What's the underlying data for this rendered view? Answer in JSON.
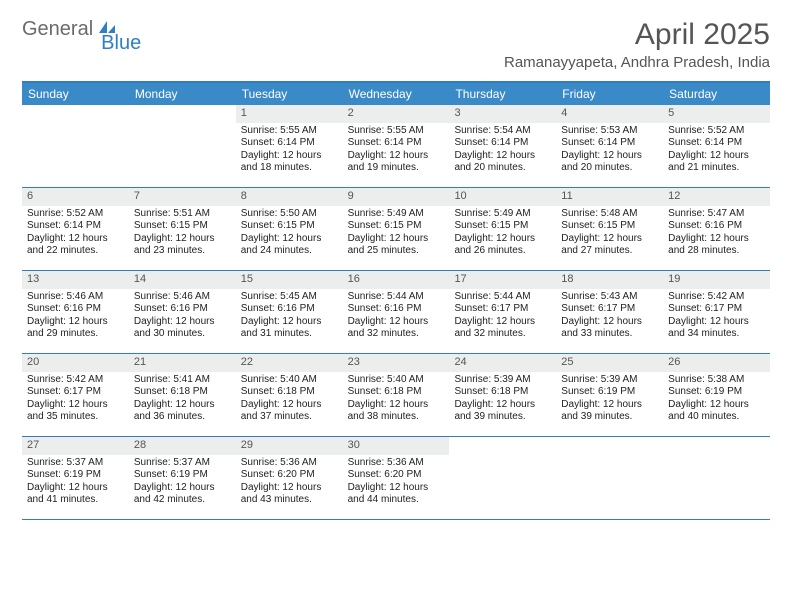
{
  "logo": {
    "part1": "General",
    "part2": "Blue"
  },
  "title": "April 2025",
  "location": "Ramanayyapeta, Andhra Pradesh, India",
  "colors": {
    "header_bg": "#3a8ac8",
    "border": "#2f7fc2",
    "daynum_bg": "#eceded",
    "text": "#333333",
    "title_text": "#555555"
  },
  "day_headers": [
    "Sunday",
    "Monday",
    "Tuesday",
    "Wednesday",
    "Thursday",
    "Friday",
    "Saturday"
  ],
  "weeks": [
    [
      null,
      null,
      {
        "n": "1",
        "sr": "5:55 AM",
        "ss": "6:14 PM",
        "dl": "12 hours and 18 minutes."
      },
      {
        "n": "2",
        "sr": "5:55 AM",
        "ss": "6:14 PM",
        "dl": "12 hours and 19 minutes."
      },
      {
        "n": "3",
        "sr": "5:54 AM",
        "ss": "6:14 PM",
        "dl": "12 hours and 20 minutes."
      },
      {
        "n": "4",
        "sr": "5:53 AM",
        "ss": "6:14 PM",
        "dl": "12 hours and 20 minutes."
      },
      {
        "n": "5",
        "sr": "5:52 AM",
        "ss": "6:14 PM",
        "dl": "12 hours and 21 minutes."
      }
    ],
    [
      {
        "n": "6",
        "sr": "5:52 AM",
        "ss": "6:14 PM",
        "dl": "12 hours and 22 minutes."
      },
      {
        "n": "7",
        "sr": "5:51 AM",
        "ss": "6:15 PM",
        "dl": "12 hours and 23 minutes."
      },
      {
        "n": "8",
        "sr": "5:50 AM",
        "ss": "6:15 PM",
        "dl": "12 hours and 24 minutes."
      },
      {
        "n": "9",
        "sr": "5:49 AM",
        "ss": "6:15 PM",
        "dl": "12 hours and 25 minutes."
      },
      {
        "n": "10",
        "sr": "5:49 AM",
        "ss": "6:15 PM",
        "dl": "12 hours and 26 minutes."
      },
      {
        "n": "11",
        "sr": "5:48 AM",
        "ss": "6:15 PM",
        "dl": "12 hours and 27 minutes."
      },
      {
        "n": "12",
        "sr": "5:47 AM",
        "ss": "6:16 PM",
        "dl": "12 hours and 28 minutes."
      }
    ],
    [
      {
        "n": "13",
        "sr": "5:46 AM",
        "ss": "6:16 PM",
        "dl": "12 hours and 29 minutes."
      },
      {
        "n": "14",
        "sr": "5:46 AM",
        "ss": "6:16 PM",
        "dl": "12 hours and 30 minutes."
      },
      {
        "n": "15",
        "sr": "5:45 AM",
        "ss": "6:16 PM",
        "dl": "12 hours and 31 minutes."
      },
      {
        "n": "16",
        "sr": "5:44 AM",
        "ss": "6:16 PM",
        "dl": "12 hours and 32 minutes."
      },
      {
        "n": "17",
        "sr": "5:44 AM",
        "ss": "6:17 PM",
        "dl": "12 hours and 32 minutes."
      },
      {
        "n": "18",
        "sr": "5:43 AM",
        "ss": "6:17 PM",
        "dl": "12 hours and 33 minutes."
      },
      {
        "n": "19",
        "sr": "5:42 AM",
        "ss": "6:17 PM",
        "dl": "12 hours and 34 minutes."
      }
    ],
    [
      {
        "n": "20",
        "sr": "5:42 AM",
        "ss": "6:17 PM",
        "dl": "12 hours and 35 minutes."
      },
      {
        "n": "21",
        "sr": "5:41 AM",
        "ss": "6:18 PM",
        "dl": "12 hours and 36 minutes."
      },
      {
        "n": "22",
        "sr": "5:40 AM",
        "ss": "6:18 PM",
        "dl": "12 hours and 37 minutes."
      },
      {
        "n": "23",
        "sr": "5:40 AM",
        "ss": "6:18 PM",
        "dl": "12 hours and 38 minutes."
      },
      {
        "n": "24",
        "sr": "5:39 AM",
        "ss": "6:18 PM",
        "dl": "12 hours and 39 minutes."
      },
      {
        "n": "25",
        "sr": "5:39 AM",
        "ss": "6:19 PM",
        "dl": "12 hours and 39 minutes."
      },
      {
        "n": "26",
        "sr": "5:38 AM",
        "ss": "6:19 PM",
        "dl": "12 hours and 40 minutes."
      }
    ],
    [
      {
        "n": "27",
        "sr": "5:37 AM",
        "ss": "6:19 PM",
        "dl": "12 hours and 41 minutes."
      },
      {
        "n": "28",
        "sr": "5:37 AM",
        "ss": "6:19 PM",
        "dl": "12 hours and 42 minutes."
      },
      {
        "n": "29",
        "sr": "5:36 AM",
        "ss": "6:20 PM",
        "dl": "12 hours and 43 minutes."
      },
      {
        "n": "30",
        "sr": "5:36 AM",
        "ss": "6:20 PM",
        "dl": "12 hours and 44 minutes."
      },
      null,
      null,
      null
    ]
  ],
  "labels": {
    "sunrise": "Sunrise:",
    "sunset": "Sunset:",
    "daylight": "Daylight:"
  }
}
